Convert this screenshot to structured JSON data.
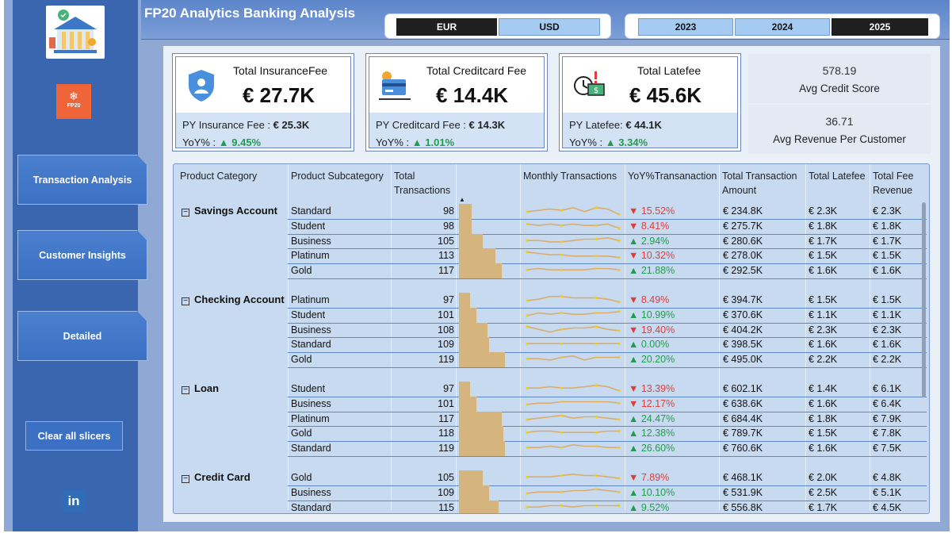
{
  "header": {
    "title": "FP20 Analytics Banking Analysis"
  },
  "currency": {
    "options": [
      "EUR",
      "USD"
    ],
    "selected": "EUR"
  },
  "years": {
    "options": [
      "2023",
      "2024",
      "2025"
    ],
    "selected": "2025"
  },
  "sidebar": {
    "logo_text": "FP20",
    "nav": [
      "Transaction Analysis",
      "Customer Insights",
      "Detailed"
    ],
    "clear": "Clear all slicers",
    "social": "in"
  },
  "kpis": [
    {
      "title": "Total InsuranceFee",
      "value": "€ 27.7K",
      "py_label": "PY Insurance Fee : ",
      "py_value": "€ 25.3K",
      "yoy_label": "YoY% : ",
      "yoy_value": "▲ 9.45%",
      "icon": "shield-icon"
    },
    {
      "title": "Total Creditcard Fee",
      "value": "€ 14.4K",
      "py_label": "PY Creditcard Fee : ",
      "py_value": "€ 14.3K",
      "yoy_label": "YoY% : ",
      "yoy_value": "▲ 1.01%",
      "icon": "credit-card-icon"
    },
    {
      "title": "Total Latefee",
      "value": "€ 45.6K",
      "py_label": "PY Latefee: ",
      "py_value": "€ 44.1K",
      "yoy_label": "YoY% : ",
      "yoy_value": "▲ 3.34%",
      "icon": "late-fee-clock-icon"
    }
  ],
  "stats": [
    {
      "value": "578.19",
      "label": "Avg Credit Score"
    },
    {
      "value": "36.71",
      "label": "Avg Revenue Per Customer"
    }
  ],
  "table": {
    "headers": [
      "Product Category",
      "Product Subcategory",
      "Total\nTransactions",
      "",
      "Monthly Transactions",
      "YoY%Transanaction",
      "Total Transaction\nAmount",
      "Total Latefee",
      "Total Fee\nRevenue"
    ],
    "groups": [
      {
        "name": "Savings Account",
        "rows": [
          {
            "sub": "Standard",
            "count": 98,
            "yoy": "▼ 15.52%",
            "dir": "down",
            "amount": "€ 234.8K",
            "late": "€ 2.3K",
            "fee": "€ 2.3K",
            "spark": [
              3,
              4,
              5,
              4,
              6,
              3,
              6,
              5,
              1
            ]
          },
          {
            "sub": "Student",
            "count": 98,
            "yoy": "▼ 8.41%",
            "dir": "down",
            "amount": "€ 275.7K",
            "late": "€ 1.8K",
            "fee": "€ 1.8K",
            "spark": [
              5,
              4,
              5,
              4,
              5,
              4,
              4,
              5,
              2
            ]
          },
          {
            "sub": "Business",
            "count": 105,
            "yoy": "▲ 2.94%",
            "dir": "up",
            "amount": "€ 280.6K",
            "late": "€ 1.7K",
            "fee": "€ 1.7K",
            "spark": [
              4,
              4,
              3,
              3,
              4,
              5,
              5,
              6,
              4
            ]
          },
          {
            "sub": "Platinum",
            "count": 113,
            "yoy": "▼ 10.32%",
            "dir": "down",
            "amount": "€ 278.0K",
            "late": "€ 1.5K",
            "fee": "€ 1.5K",
            "spark": [
              6,
              5,
              4,
              4,
              3,
              3,
              3,
              3,
              2
            ]
          },
          {
            "sub": "Gold",
            "count": 117,
            "yoy": "▲ 21.88%",
            "dir": "up",
            "amount": "€ 292.5K",
            "late": "€ 1.6K",
            "fee": "€ 1.6K",
            "spark": [
              4,
              5,
              4,
              4,
              4,
              4,
              5,
              5,
              4
            ]
          }
        ]
      },
      {
        "name": "Checking Account",
        "rows": [
          {
            "sub": "Platinum",
            "count": 97,
            "yoy": "▼ 8.49%",
            "dir": "down",
            "amount": "€ 394.7K",
            "late": "€ 1.5K",
            "fee": "€ 1.5K",
            "spark": [
              3,
              4,
              6,
              6,
              5,
              5,
              5,
              4,
              2
            ]
          },
          {
            "sub": "Student",
            "count": 101,
            "yoy": "▲ 10.99%",
            "dir": "up",
            "amount": "€ 370.6K",
            "late": "€ 1.1K",
            "fee": "€ 1.1K",
            "spark": [
              3,
              5,
              4,
              5,
              4,
              4,
              5,
              5,
              6
            ]
          },
          {
            "sub": "Business",
            "count": 108,
            "yoy": "▼ 19.40%",
            "dir": "down",
            "amount": "€ 404.2K",
            "late": "€ 2.3K",
            "fee": "€ 2.3K",
            "spark": [
              6,
              4,
              2,
              4,
              5,
              5,
              6,
              4,
              3
            ]
          },
          {
            "sub": "Standard",
            "count": 109,
            "yoy": "▲ 0.00%",
            "dir": "up",
            "amount": "€ 398.5K",
            "late": "€ 1.6K",
            "fee": "€ 1.6K",
            "spark": [
              4,
              4,
              4,
              4,
              4,
              4,
              4,
              4,
              4
            ]
          },
          {
            "sub": "Gold",
            "count": 119,
            "yoy": "▲ 20.20%",
            "dir": "up",
            "amount": "€ 495.0K",
            "late": "€ 2.2K",
            "fee": "€ 2.2K",
            "spark": [
              4,
              4,
              3,
              5,
              6,
              3,
              5,
              5,
              5
            ]
          }
        ]
      },
      {
        "name": "Loan",
        "rows": [
          {
            "sub": "Student",
            "count": 97,
            "yoy": "▼ 13.39%",
            "dir": "down",
            "amount": "€ 602.1K",
            "late": "€ 1.4K",
            "fee": "€ 6.1K",
            "spark": [
              4,
              4,
              5,
              4,
              4,
              5,
              6,
              5,
              2
            ]
          },
          {
            "sub": "Business",
            "count": 101,
            "yoy": "▼ 12.17%",
            "dir": "down",
            "amount": "€ 638.6K",
            "late": "€ 1.6K",
            "fee": "€ 6.4K",
            "spark": [
              3,
              4,
              4,
              5,
              5,
              5,
              5,
              5,
              4
            ]
          },
          {
            "sub": "Platinum",
            "count": 117,
            "yoy": "▲ 24.47%",
            "dir": "up",
            "amount": "€ 684.4K",
            "late": "€ 1.8K",
            "fee": "€ 7.9K",
            "spark": [
              3,
              4,
              5,
              6,
              4,
              5,
              5,
              4,
              3
            ]
          },
          {
            "sub": "Gold",
            "count": 118,
            "yoy": "▲ 12.38%",
            "dir": "up",
            "amount": "€ 789.7K",
            "late": "€ 1.5K",
            "fee": "€ 7.8K",
            "spark": [
              4,
              5,
              5,
              4,
              4,
              4,
              4,
              5,
              5
            ]
          },
          {
            "sub": "Standard",
            "count": 119,
            "yoy": "▲ 26.60%",
            "dir": "up",
            "amount": "€ 760.6K",
            "late": "€ 1.6K",
            "fee": "€ 7.5K",
            "spark": [
              4,
              4,
              5,
              4,
              6,
              5,
              5,
              4,
              4
            ]
          }
        ]
      },
      {
        "name": "Credit Card",
        "rows": [
          {
            "sub": "Gold",
            "count": 105,
            "yoy": "▼ 7.89%",
            "dir": "down",
            "amount": "€ 468.1K",
            "late": "€ 2.0K",
            "fee": "€ 4.8K",
            "spark": [
              4,
              4,
              4,
              5,
              6,
              5,
              5,
              4,
              3
            ]
          },
          {
            "sub": "Business",
            "count": 109,
            "yoy": "▲ 10.10%",
            "dir": "up",
            "amount": "€ 531.9K",
            "late": "€ 2.5K",
            "fee": "€ 5.1K",
            "spark": [
              3,
              4,
              4,
              4,
              5,
              5,
              6,
              5,
              4
            ]
          },
          {
            "sub": "Standard",
            "count": 115,
            "yoy": "▲ 9.52%",
            "dir": "up",
            "amount": "€ 556.8K",
            "late": "€ 1.7K",
            "fee": "€ 4.5K",
            "spark": [
              4,
              4,
              5,
              5,
              4,
              5,
              5,
              5,
              5
            ]
          }
        ]
      }
    ]
  },
  "colors": {
    "bar": "#d6b47e",
    "spark_line": "#d9ad6e",
    "spark_dot": "#f2d000",
    "up": "#1f9d4c",
    "down": "#e03c3c"
  }
}
